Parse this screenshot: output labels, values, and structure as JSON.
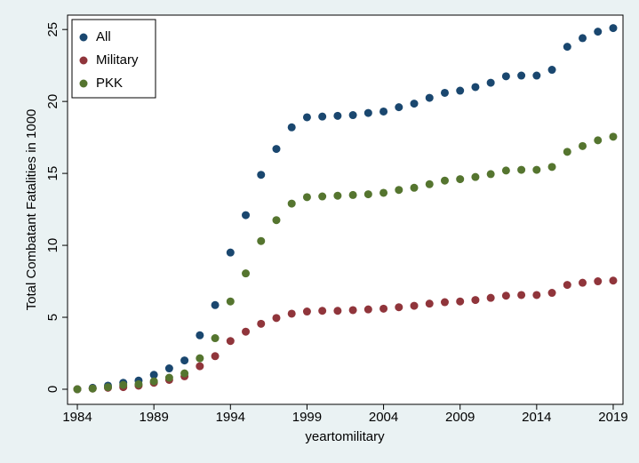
{
  "chart_data": {
    "type": "scatter",
    "x_label": "yeartomilitary",
    "y_label": "Total Combatant Fatalities in 1000",
    "x": [
      1984,
      1985,
      1986,
      1987,
      1988,
      1989,
      1990,
      1991,
      1992,
      1993,
      1994,
      1995,
      1996,
      1997,
      1998,
      1999,
      2000,
      2001,
      2002,
      2003,
      2004,
      2005,
      2006,
      2007,
      2008,
      2009,
      2010,
      2011,
      2012,
      2013,
      2014,
      2015,
      2016,
      2017,
      2018,
      2019
    ],
    "series": [
      {
        "name": "All",
        "color": "#1a476f",
        "values": [
          0,
          0.1,
          0.25,
          0.45,
          0.6,
          1.0,
          1.45,
          2.0,
          3.75,
          5.85,
          9.5,
          12.1,
          14.9,
          16.7,
          18.2,
          18.9,
          18.95,
          19.0,
          19.05,
          19.2,
          19.3,
          19.6,
          19.85,
          20.25,
          20.6,
          20.75,
          21.0,
          21.3,
          21.75,
          21.8,
          21.8,
          22.2,
          23.8,
          24.4,
          24.85,
          25.1
        ]
      },
      {
        "name": "Military",
        "color": "#90353b",
        "values": [
          0,
          0.05,
          0.1,
          0.15,
          0.25,
          0.45,
          0.65,
          0.9,
          1.6,
          2.3,
          3.35,
          4.0,
          4.55,
          4.95,
          5.25,
          5.4,
          5.45,
          5.45,
          5.5,
          5.55,
          5.6,
          5.7,
          5.8,
          5.95,
          6.05,
          6.1,
          6.2,
          6.35,
          6.5,
          6.55,
          6.55,
          6.7,
          7.25,
          7.4,
          7.5,
          7.55
        ]
      },
      {
        "name": "PKK",
        "color": "#55752f",
        "values": [
          0,
          0.05,
          0.15,
          0.3,
          0.35,
          0.55,
          0.8,
          1.1,
          2.15,
          3.55,
          6.1,
          8.05,
          10.3,
          11.75,
          12.9,
          13.35,
          13.4,
          13.45,
          13.5,
          13.55,
          13.65,
          13.85,
          14.0,
          14.25,
          14.5,
          14.6,
          14.75,
          14.95,
          15.2,
          15.25,
          15.25,
          15.45,
          16.5,
          16.9,
          17.3,
          17.55
        ]
      }
    ],
    "xlim": [
      1983.36,
      2019.64
    ],
    "xticks": [
      1984,
      1989,
      1994,
      1999,
      2004,
      2009,
      2014,
      2019
    ],
    "ylim": [
      -1.05,
      26
    ],
    "yticks": [
      0,
      5,
      10,
      15,
      20,
      25
    ],
    "grid": false,
    "legend": "top-left"
  }
}
